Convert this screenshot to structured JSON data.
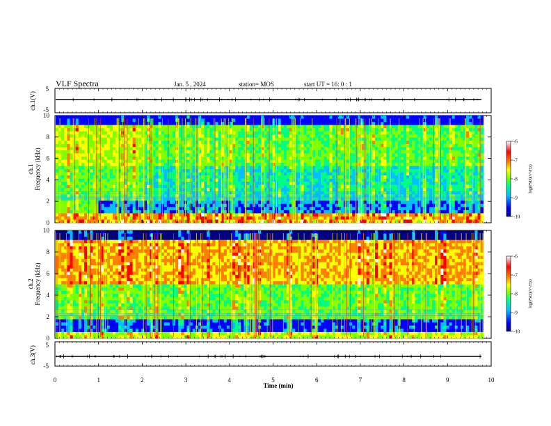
{
  "header": {
    "title": "VLF Spectra",
    "date": "Jan. 5 , 2024",
    "station": "station= MOS",
    "start": "start UT =  16: 0 : 1"
  },
  "chart_data": {
    "type": "heatmap",
    "x": {
      "label": "Time (min)",
      "range": [
        0,
        10
      ],
      "ticks": [
        "0",
        "1",
        "2",
        "3",
        "4",
        "5",
        "6",
        "7",
        "8",
        "9",
        "10"
      ]
    },
    "panels": [
      {
        "id": "ch1-waveform",
        "type": "line",
        "ylabel": "ch.1(V)",
        "ylim": [
          -5,
          5
        ],
        "ticks": [
          "5",
          "-5"
        ]
      },
      {
        "id": "ch1-spectrogram",
        "type": "heatmap",
        "ylabel_top": "ch.1",
        "ylabel": "Frequency (kHz)",
        "ylim": [
          0,
          10
        ],
        "ticks": [
          "0",
          "2",
          "4",
          "6",
          "8",
          "10"
        ]
      },
      {
        "id": "ch2-spectrogram",
        "type": "heatmap",
        "ylabel_top": "ch.2",
        "ylabel": "Frequency (kHz)",
        "ylim": [
          0,
          10
        ],
        "ticks": [
          "0",
          "2",
          "4",
          "6",
          "8",
          "10"
        ]
      },
      {
        "id": "ch3-waveform",
        "type": "line",
        "ylabel": "ch.3(V)",
        "ylim": [
          -5,
          5
        ],
        "ticks": [
          "5",
          "-5"
        ]
      }
    ],
    "colorbar": {
      "label": "log(PSD)(V²/Hz)",
      "range": [
        -10,
        -6
      ],
      "ticks": [
        "-6",
        "-7",
        "-8",
        "-9",
        "-10"
      ],
      "colors": [
        "#000080",
        "#0000ff",
        "#00c0ff",
        "#00ff80",
        "#80ff00",
        "#ffff00",
        "#ff8000",
        "#ff0000",
        "#ffffff"
      ]
    }
  }
}
